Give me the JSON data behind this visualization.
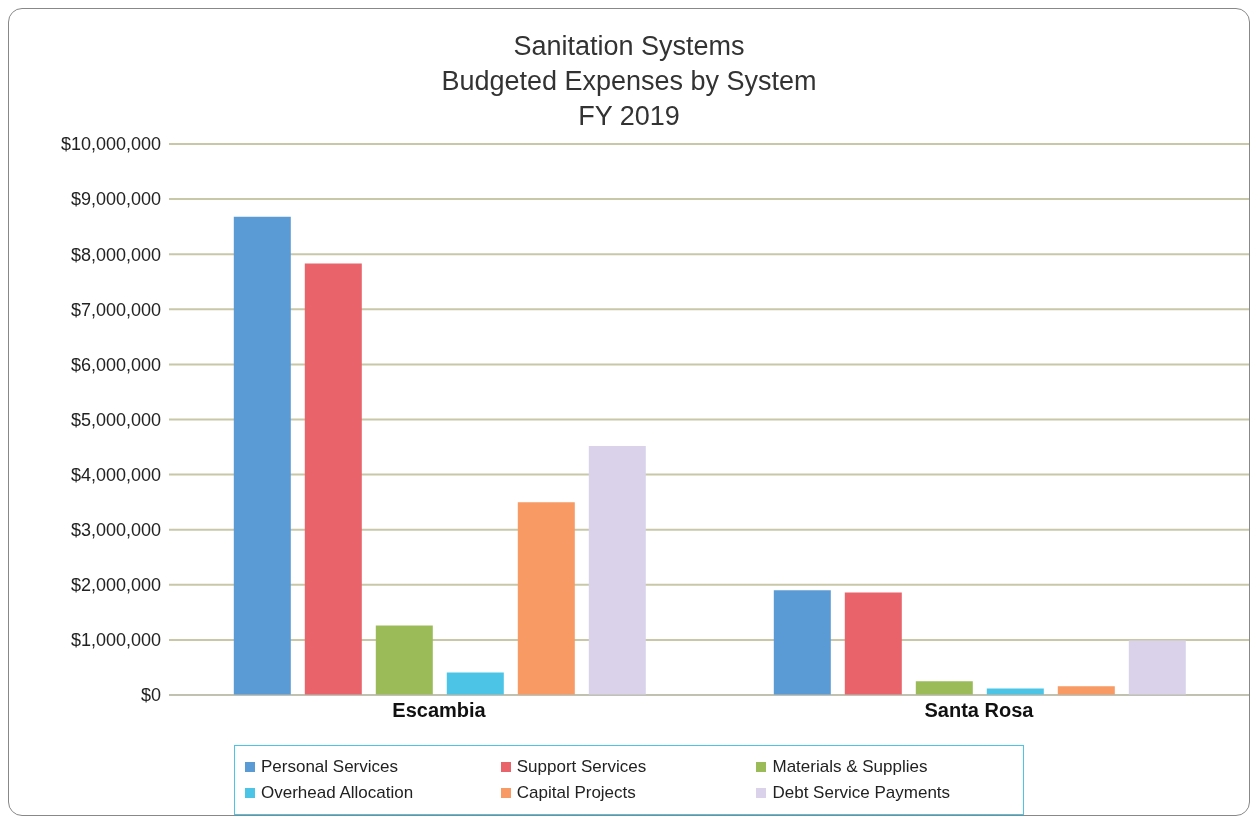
{
  "chart_data": {
    "type": "bar",
    "title": "Sanitation Systems\nBudgeted Expenses by System\nFY 2019",
    "categories": [
      "Escambia",
      "Santa Rosa"
    ],
    "series": [
      {
        "name": "Personal Services",
        "color": "#5b9bd5",
        "values": [
          8680000,
          1900000
        ]
      },
      {
        "name": "Support Services",
        "color": "#e8646a",
        "values": [
          7830000,
          1860000
        ]
      },
      {
        "name": "Materials & Supplies",
        "color": "#9bbb59",
        "values": [
          1260000,
          250000
        ]
      },
      {
        "name": "Overhead Allocation",
        "color": "#4bc4e6",
        "values": [
          410000,
          120000
        ]
      },
      {
        "name": "Capital Projects",
        "color": "#f79a63",
        "values": [
          3500000,
          160000
        ]
      },
      {
        "name": "Debt Service Payments",
        "color": "#d9d2ea",
        "values": [
          4520000,
          990000
        ]
      }
    ],
    "ylim": [
      0,
      10000000
    ],
    "yticks": [
      {
        "value": 0,
        "label": "$0"
      },
      {
        "value": 1000000,
        "label": "$1,000,000"
      },
      {
        "value": 2000000,
        "label": "$2,000,000"
      },
      {
        "value": 3000000,
        "label": "$3,000,000"
      },
      {
        "value": 4000000,
        "label": "$4,000,000"
      },
      {
        "value": 5000000,
        "label": "$5,000,000"
      },
      {
        "value": 6000000,
        "label": "$6,000,000"
      },
      {
        "value": 7000000,
        "label": "$7,000,000"
      },
      {
        "value": 8000000,
        "label": "$8,000,000"
      },
      {
        "value": 9000000,
        "label": "$9,000,000"
      },
      {
        "value": 10000000,
        "label": "$10,000,000"
      }
    ],
    "grid": "y",
    "legend": "bottom"
  }
}
